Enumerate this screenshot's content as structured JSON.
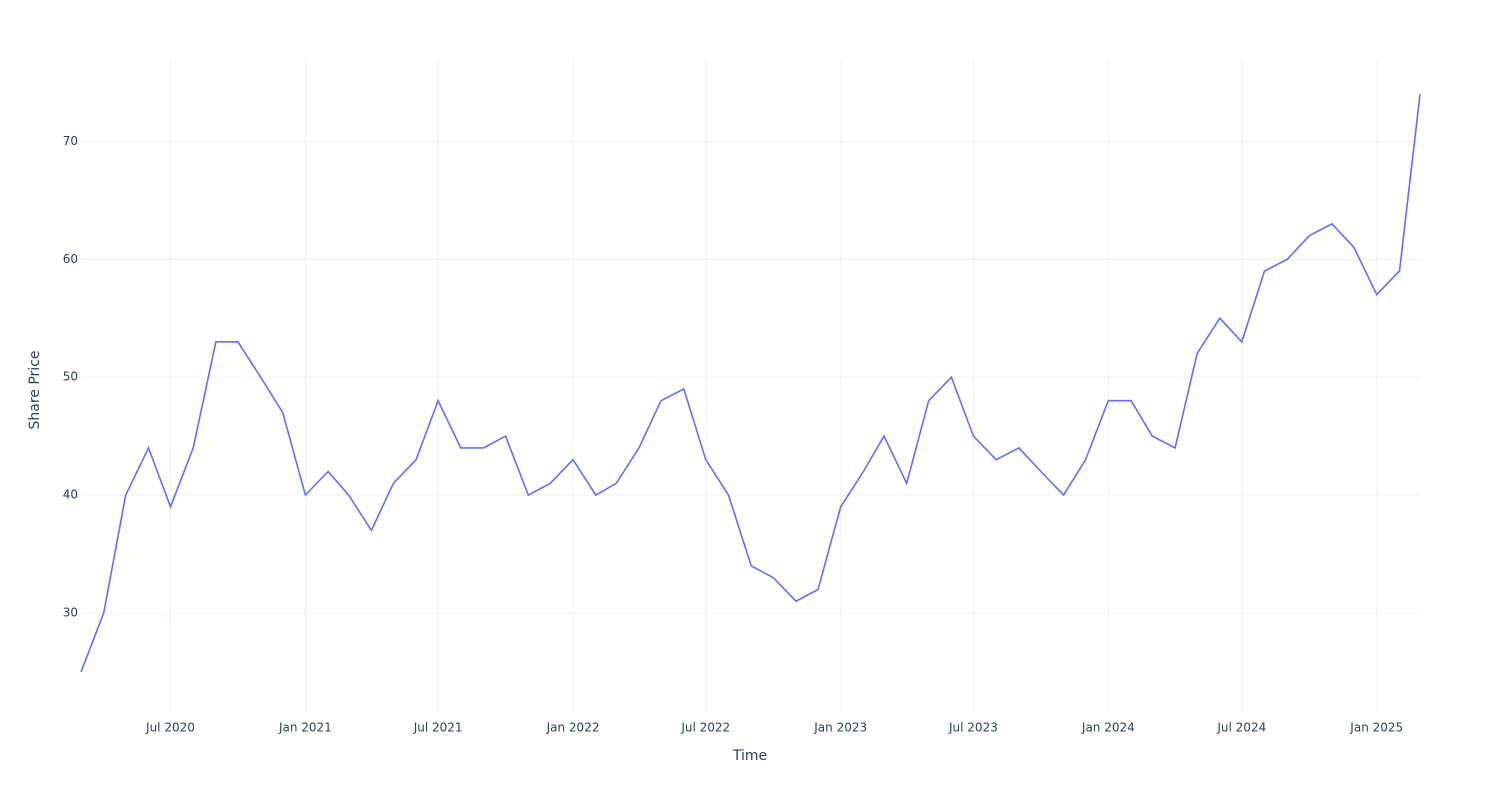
{
  "chart_data": {
    "type": "line",
    "x_label": "Time",
    "y_label": "Share Price",
    "x": [
      "2020-03",
      "2020-04",
      "2020-05",
      "2020-06",
      "2020-07",
      "2020-08",
      "2020-09",
      "2020-10",
      "2020-11",
      "2020-12",
      "2021-01",
      "2021-02",
      "2021-03",
      "2021-04",
      "2021-05",
      "2021-06",
      "2021-07",
      "2021-08",
      "2021-09",
      "2021-10",
      "2021-11",
      "2021-12",
      "2022-01",
      "2022-02",
      "2022-03",
      "2022-04",
      "2022-05",
      "2022-06",
      "2022-07",
      "2022-08",
      "2022-09",
      "2022-10",
      "2022-11",
      "2022-12",
      "2023-01",
      "2023-02",
      "2023-03",
      "2023-04",
      "2023-05",
      "2023-06",
      "2023-07",
      "2023-08",
      "2023-09",
      "2023-10",
      "2023-11",
      "2023-12",
      "2024-01",
      "2024-02",
      "2024-03",
      "2024-04",
      "2024-05",
      "2024-06",
      "2024-07",
      "2024-08",
      "2024-09",
      "2024-10",
      "2024-11",
      "2024-12",
      "2025-01",
      "2025-02",
      "2025-03"
    ],
    "series": [
      {
        "name": "Share Price",
        "color": "#636efa",
        "values": [
          25,
          30,
          40,
          44,
          39,
          44,
          53,
          53,
          50,
          47,
          40,
          42,
          40,
          37,
          41,
          43,
          48,
          44,
          44,
          45,
          40,
          41,
          43,
          40,
          41,
          44,
          48,
          49,
          43,
          40,
          34,
          33,
          31,
          32,
          39,
          42,
          45,
          41,
          48,
          50,
          45,
          43,
          44,
          42,
          40,
          43,
          48,
          48,
          45,
          44,
          52,
          55,
          53,
          59,
          60,
          62,
          63,
          61,
          57,
          59,
          74
        ]
      }
    ],
    "xlim": [
      "2020-03",
      "2025-03"
    ],
    "xticks": [
      {
        "value": "2020-07",
        "label": "Jul 2020"
      },
      {
        "value": "2021-01",
        "label": "Jan 2021"
      },
      {
        "value": "2021-07",
        "label": "Jul 2021"
      },
      {
        "value": "2022-01",
        "label": "Jan 2022"
      },
      {
        "value": "2022-07",
        "label": "Jul 2022"
      },
      {
        "value": "2023-01",
        "label": "Jan 2023"
      },
      {
        "value": "2023-07",
        "label": "Jul 2023"
      },
      {
        "value": "2024-01",
        "label": "Jan 2024"
      },
      {
        "value": "2024-07",
        "label": "Jul 2024"
      },
      {
        "value": "2025-01",
        "label": "Jan 2025"
      }
    ],
    "ylim": [
      21.6,
      76.9
    ],
    "yticks": [
      30,
      40,
      50,
      60,
      70
    ],
    "grid": true
  }
}
